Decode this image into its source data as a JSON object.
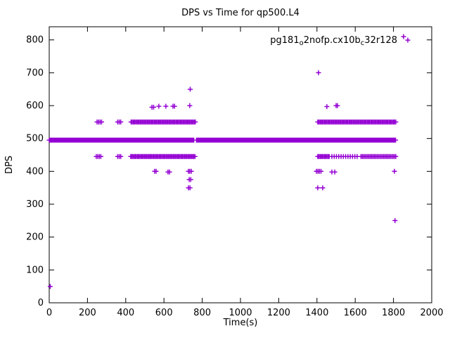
{
  "title": "DPS vs Time for qp500.L4",
  "legend": {
    "p1": "pg181",
    "s1": "o",
    "p2": "2nofp.cx10b",
    "s2": "c",
    "p3": "32r128"
  },
  "chart_data": {
    "type": "scatter",
    "title": "DPS vs Time for qp500.L4",
    "xlabel": "Time(s)",
    "ylabel": "DPS",
    "xlim": [
      0,
      2000
    ],
    "ylim": [
      0,
      840
    ],
    "xticks": [
      0,
      200,
      400,
      600,
      800,
      1000,
      1200,
      1400,
      1600,
      1800,
      2000
    ],
    "yticks": [
      0,
      100,
      200,
      300,
      400,
      500,
      600,
      700,
      800
    ],
    "grid": false,
    "legend_position": "top-right",
    "marker": "plus",
    "color": "#9400D3",
    "series": [
      {
        "name": "pg181_o2nofp.cx10b_c32r128",
        "bands": [
          {
            "y": 495,
            "x0": 0,
            "x1": 756,
            "step": 3
          },
          {
            "y": 495,
            "x0": 770,
            "x1": 1812,
            "step": 3
          },
          {
            "y": 550,
            "x0": 250,
            "x1": 276,
            "step": 8
          },
          {
            "y": 550,
            "x0": 358,
            "x1": 376,
            "step": 8
          },
          {
            "y": 550,
            "x0": 428,
            "x1": 764,
            "step": 6
          },
          {
            "y": 550,
            "x0": 1404,
            "x1": 1812,
            "step": 6
          },
          {
            "y": 445,
            "x0": 246,
            "x1": 272,
            "step": 8
          },
          {
            "y": 445,
            "x0": 358,
            "x1": 380,
            "step": 8
          },
          {
            "y": 445,
            "x0": 426,
            "x1": 762,
            "step": 6
          },
          {
            "y": 445,
            "x0": 1404,
            "x1": 1466,
            "step": 6
          },
          {
            "y": 445,
            "x0": 1478,
            "x1": 1620,
            "step": 12
          },
          {
            "y": 445,
            "x0": 1630,
            "x1": 1812,
            "step": 7
          }
        ],
        "points": [
          [
            5,
            50
          ],
          [
            537,
            595
          ],
          [
            546,
            595
          ],
          [
            573,
            598
          ],
          [
            610,
            598
          ],
          [
            647,
            598
          ],
          [
            655,
            598
          ],
          [
            735,
            600
          ],
          [
            737,
            650
          ],
          [
            551,
            400
          ],
          [
            559,
            400
          ],
          [
            621,
            398
          ],
          [
            629,
            398
          ],
          [
            728,
            400
          ],
          [
            735,
            400
          ],
          [
            743,
            400
          ],
          [
            732,
            375
          ],
          [
            740,
            375
          ],
          [
            728,
            350
          ],
          [
            736,
            350
          ],
          [
            1408,
            700
          ],
          [
            1452,
            597
          ],
          [
            1500,
            600
          ],
          [
            1507,
            600
          ],
          [
            1397,
            400
          ],
          [
            1405,
            400
          ],
          [
            1413,
            400
          ],
          [
            1421,
            400
          ],
          [
            1478,
            398
          ],
          [
            1493,
            398
          ],
          [
            1404,
            350
          ],
          [
            1430,
            350
          ],
          [
            1805,
            400
          ],
          [
            1808,
            250
          ],
          [
            1853,
            810
          ]
        ]
      }
    ]
  }
}
